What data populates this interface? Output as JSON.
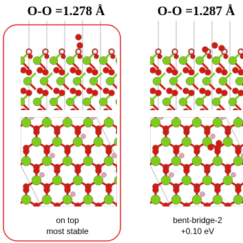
{
  "panels": [
    {
      "title": "O-O =1.278 Å",
      "caption": [
        "on top",
        "most stable"
      ]
    },
    {
      "title": "O-O =1.287 Å",
      "caption": [
        "bent-bridge-2",
        "+0.10 eV"
      ]
    }
  ]
}
